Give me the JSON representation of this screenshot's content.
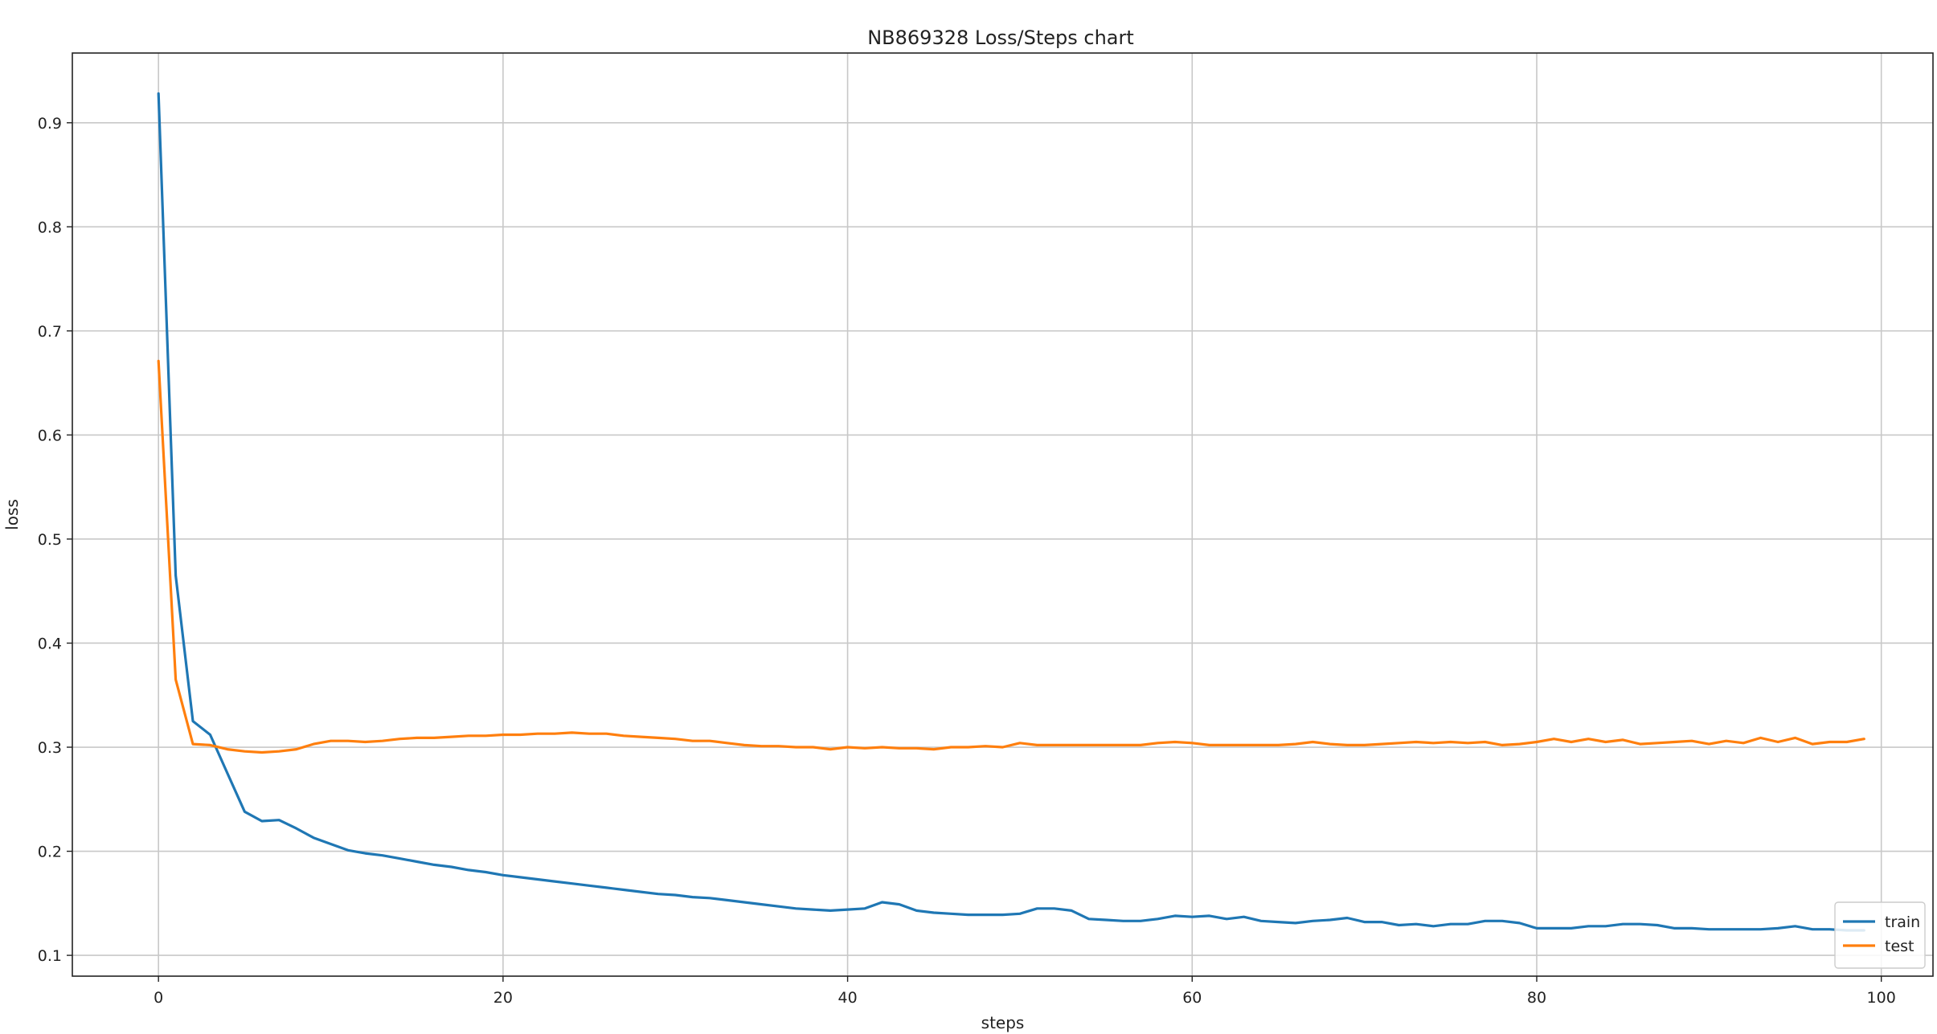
{
  "chart_data": {
    "type": "line",
    "title": "NB869328 Loss/Steps chart",
    "xlabel": "steps",
    "ylabel": "loss",
    "xlim": [
      -5,
      103
    ],
    "ylim": [
      0.08,
      0.967
    ],
    "xticks": [
      0,
      20,
      40,
      60,
      80,
      100
    ],
    "yticks": [
      0.1,
      0.2,
      0.3,
      0.4,
      0.5,
      0.6,
      0.7,
      0.8,
      0.9
    ],
    "grid": true,
    "legend_position": "bottom-right",
    "series": [
      {
        "name": "train",
        "color": "#1f77b4",
        "x": [
          0,
          1,
          2,
          3,
          4,
          5,
          6,
          7,
          8,
          9,
          10,
          11,
          12,
          13,
          14,
          15,
          16,
          17,
          18,
          19,
          20,
          21,
          22,
          23,
          24,
          25,
          26,
          27,
          28,
          29,
          30,
          31,
          32,
          33,
          34,
          35,
          36,
          37,
          38,
          39,
          40,
          41,
          42,
          43,
          44,
          45,
          46,
          47,
          48,
          49,
          50,
          51,
          52,
          53,
          54,
          55,
          56,
          57,
          58,
          59,
          60,
          61,
          62,
          63,
          64,
          65,
          66,
          67,
          68,
          69,
          70,
          71,
          72,
          73,
          74,
          75,
          76,
          77,
          78,
          79,
          80,
          81,
          82,
          83,
          84,
          85,
          86,
          87,
          88,
          89,
          90,
          91,
          92,
          93,
          94,
          95,
          96,
          97,
          98,
          99
        ],
        "y": [
          0.928,
          0.465,
          0.325,
          0.312,
          0.275,
          0.238,
          0.229,
          0.23,
          0.222,
          0.213,
          0.207,
          0.201,
          0.198,
          0.196,
          0.193,
          0.19,
          0.187,
          0.185,
          0.182,
          0.18,
          0.177,
          0.175,
          0.173,
          0.171,
          0.169,
          0.167,
          0.165,
          0.163,
          0.161,
          0.159,
          0.158,
          0.156,
          0.155,
          0.153,
          0.151,
          0.149,
          0.147,
          0.145,
          0.144,
          0.143,
          0.144,
          0.145,
          0.151,
          0.149,
          0.143,
          0.141,
          0.14,
          0.139,
          0.139,
          0.139,
          0.14,
          0.145,
          0.145,
          0.143,
          0.135,
          0.134,
          0.133,
          0.133,
          0.135,
          0.138,
          0.137,
          0.138,
          0.135,
          0.137,
          0.133,
          0.132,
          0.131,
          0.133,
          0.134,
          0.136,
          0.132,
          0.132,
          0.129,
          0.13,
          0.128,
          0.13,
          0.13,
          0.133,
          0.133,
          0.131,
          0.126,
          0.126,
          0.126,
          0.128,
          0.128,
          0.13,
          0.13,
          0.129,
          0.126,
          0.126,
          0.125,
          0.125,
          0.125,
          0.125,
          0.126,
          0.128,
          0.125,
          0.125,
          0.124,
          0.124
        ]
      },
      {
        "name": "test",
        "color": "#ff7f0e",
        "x": [
          0,
          1,
          2,
          3,
          4,
          5,
          6,
          7,
          8,
          9,
          10,
          11,
          12,
          13,
          14,
          15,
          16,
          17,
          18,
          19,
          20,
          21,
          22,
          23,
          24,
          25,
          26,
          27,
          28,
          29,
          30,
          31,
          32,
          33,
          34,
          35,
          36,
          37,
          38,
          39,
          40,
          41,
          42,
          43,
          44,
          45,
          46,
          47,
          48,
          49,
          50,
          51,
          52,
          53,
          54,
          55,
          56,
          57,
          58,
          59,
          60,
          61,
          62,
          63,
          64,
          65,
          66,
          67,
          68,
          69,
          70,
          71,
          72,
          73,
          74,
          75,
          76,
          77,
          78,
          79,
          80,
          81,
          82,
          83,
          84,
          85,
          86,
          87,
          88,
          89,
          90,
          91,
          92,
          93,
          94,
          95,
          96,
          97,
          98,
          99
        ],
        "y": [
          0.671,
          0.365,
          0.303,
          0.302,
          0.298,
          0.296,
          0.295,
          0.296,
          0.298,
          0.303,
          0.306,
          0.306,
          0.305,
          0.306,
          0.308,
          0.309,
          0.309,
          0.31,
          0.311,
          0.311,
          0.312,
          0.312,
          0.313,
          0.313,
          0.314,
          0.313,
          0.313,
          0.311,
          0.31,
          0.309,
          0.308,
          0.306,
          0.306,
          0.304,
          0.302,
          0.301,
          0.301,
          0.3,
          0.3,
          0.298,
          0.3,
          0.299,
          0.3,
          0.299,
          0.299,
          0.298,
          0.3,
          0.3,
          0.301,
          0.3,
          0.304,
          0.302,
          0.302,
          0.302,
          0.302,
          0.302,
          0.302,
          0.302,
          0.304,
          0.305,
          0.304,
          0.302,
          0.302,
          0.302,
          0.302,
          0.302,
          0.303,
          0.305,
          0.303,
          0.302,
          0.302,
          0.303,
          0.304,
          0.305,
          0.304,
          0.305,
          0.304,
          0.305,
          0.302,
          0.303,
          0.305,
          0.308,
          0.305,
          0.308,
          0.305,
          0.307,
          0.303,
          0.304,
          0.305,
          0.306,
          0.303,
          0.306,
          0.304,
          0.309,
          0.305,
          0.309,
          0.303,
          0.305,
          0.305,
          0.308
        ]
      }
    ]
  }
}
